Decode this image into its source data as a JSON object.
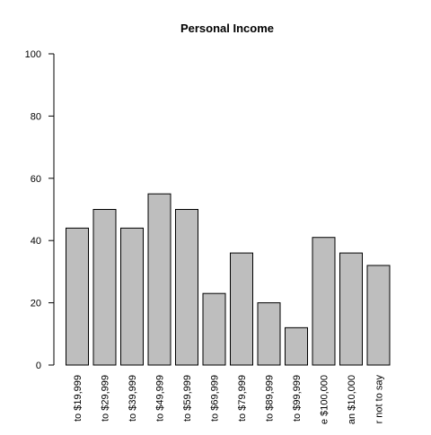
{
  "chart_data": {
    "type": "bar",
    "title": "Personal Income",
    "xlabel": "",
    "ylabel": "",
    "ylim": [
      0,
      100
    ],
    "yticks": [
      0,
      20,
      40,
      60,
      80,
      100
    ],
    "categories": [
      "to $19,999",
      "to $29,999",
      "to $39,999",
      "to $49,999",
      "to $59,999",
      "to $69,999",
      "to $79,999",
      "to $89,999",
      "to $99,999",
      "e $100,000",
      "an $10,000",
      "r not to say"
    ],
    "values": [
      44,
      50,
      44,
      55,
      50,
      23,
      36,
      20,
      12,
      41,
      36,
      32
    ],
    "bar_color": "#bebebe",
    "grid": false
  }
}
